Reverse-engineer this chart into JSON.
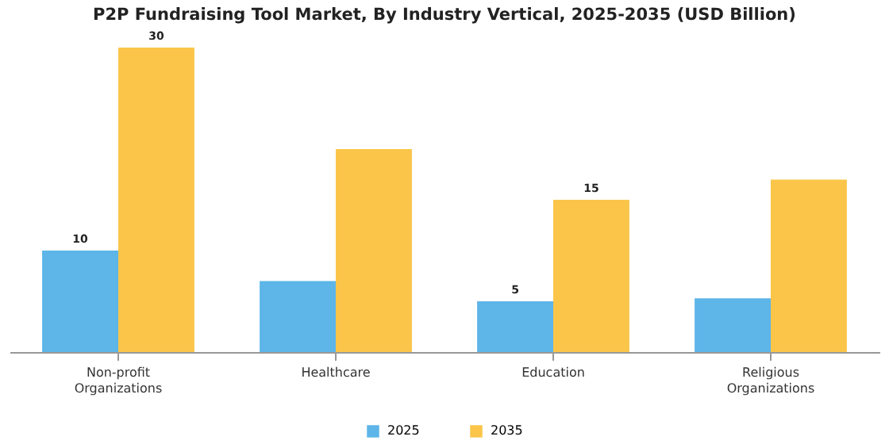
{
  "chart_data": {
    "type": "bar",
    "title": "P2P Fundraising Tool Market, By Industry Vertical, 2025-2035 (USD Billion)",
    "categories": [
      "Non-profit Organizations",
      "Healthcare",
      "Education",
      "Religious Organizations"
    ],
    "legend": "bottom",
    "series": [
      {
        "name": "2025",
        "color": "#5db5e8",
        "values": [
          10,
          7,
          5,
          5.3
        ],
        "value_labels": [
          "10",
          null,
          "5",
          null
        ]
      },
      {
        "name": "2035",
        "color": "#fbc54a",
        "values": [
          30,
          20,
          15,
          17
        ],
        "value_labels": [
          "30",
          null,
          "15",
          null
        ]
      }
    ]
  }
}
